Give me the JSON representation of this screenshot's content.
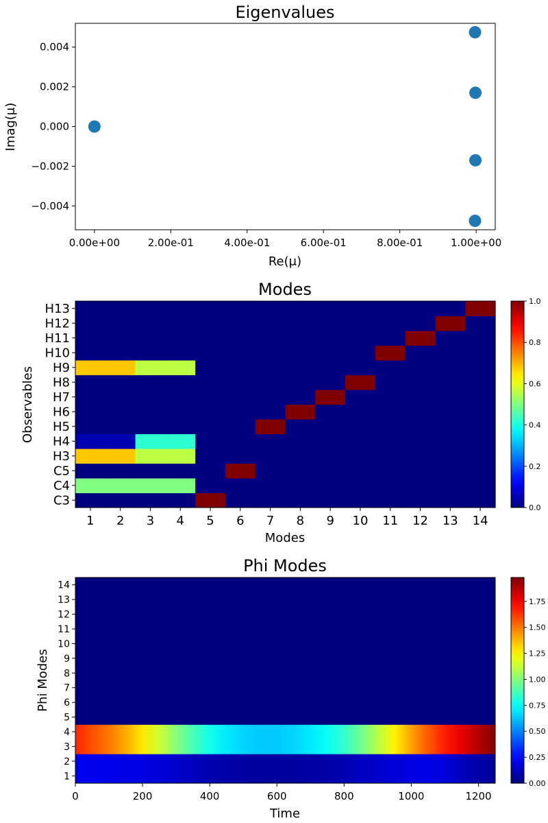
{
  "chart_data": [
    {
      "type": "scatter",
      "title": "Eigenvalues",
      "xlabel": "Re(μ)",
      "ylabel": "Imag(μ)",
      "xlim": [
        -0.05,
        1.05
      ],
      "ylim": [
        -0.0052,
        0.0052
      ],
      "xticks": [
        0,
        0.2,
        0.4,
        0.6,
        0.8,
        1.0
      ],
      "xtick_labels": [
        "0.00e+00",
        "2.00e-01",
        "4.00e-01",
        "6.00e-01",
        "8.00e-01",
        "1.00e+00"
      ],
      "yticks": [
        -0.004,
        -0.002,
        0.0,
        0.002,
        0.004
      ],
      "ytick_labels": [
        "−0.004",
        "−0.002",
        "0.000",
        "0.002",
        "0.004"
      ],
      "color": "#1f77b4",
      "points": [
        {
          "x": 0.0,
          "y": 0.0
        },
        {
          "x": 0.997,
          "y": 0.00475
        },
        {
          "x": 0.998,
          "y": 0.0017
        },
        {
          "x": 0.998,
          "y": -0.0017
        },
        {
          "x": 0.997,
          "y": -0.00475
        }
      ]
    },
    {
      "type": "heatmap",
      "title": "Modes",
      "xlabel": "Modes",
      "ylabel": "Observables",
      "colormap": "jet",
      "vmin": 0.0,
      "vmax": 1.0,
      "x_tick_labels": [
        "1",
        "2",
        "3",
        "4",
        "5",
        "6",
        "7",
        "8",
        "9",
        "10",
        "11",
        "12",
        "13",
        "14"
      ],
      "y_tick_labels": [
        "C3",
        "C4",
        "C5",
        "H3",
        "H4",
        "H5",
        "H6",
        "H7",
        "H8",
        "H9",
        "H10",
        "H11",
        "H12",
        "H13"
      ],
      "colorbar_ticks": [
        0.0,
        0.2,
        0.4,
        0.6,
        0.8,
        1.0
      ],
      "colorbar_tick_labels": [
        "0.0",
        "0.2",
        "0.4",
        "0.6",
        "0.8",
        "1.0"
      ],
      "rows": [
        [
          0,
          0,
          0,
          0,
          1,
          0,
          0,
          0,
          0,
          0,
          0,
          0,
          0,
          0
        ],
        [
          0.5,
          0.5,
          0.5,
          0.5,
          0,
          0,
          0,
          0,
          0,
          0,
          0,
          0,
          0,
          0
        ],
        [
          0,
          0,
          0,
          0,
          0,
          1,
          0,
          0,
          0,
          0,
          0,
          0,
          0,
          0
        ],
        [
          0.68,
          0.68,
          0.56,
          0.56,
          0,
          0,
          0,
          0,
          0,
          0,
          0,
          0,
          0,
          0
        ],
        [
          0.05,
          0.05,
          0.42,
          0.42,
          0,
          0,
          0,
          0,
          0,
          0,
          0,
          0,
          0,
          0
        ],
        [
          0,
          0,
          0,
          0,
          0,
          0,
          1,
          0,
          0,
          0,
          0,
          0,
          0,
          0
        ],
        [
          0,
          0,
          0,
          0,
          0,
          0,
          0,
          1,
          0,
          0,
          0,
          0,
          0,
          0
        ],
        [
          0,
          0,
          0,
          0,
          0,
          0,
          0,
          0,
          1,
          0,
          0,
          0,
          0,
          0
        ],
        [
          0,
          0,
          0,
          0,
          0,
          0,
          0,
          0,
          0,
          1,
          0,
          0,
          0,
          0
        ],
        [
          0.68,
          0.68,
          0.56,
          0.56,
          0,
          0,
          0,
          0,
          0,
          0,
          0,
          0,
          0,
          0
        ],
        [
          0,
          0,
          0,
          0,
          0,
          0,
          0,
          0,
          0,
          0,
          1,
          0,
          0,
          0
        ],
        [
          0,
          0,
          0,
          0,
          0,
          0,
          0,
          0,
          0,
          0,
          0,
          1,
          0,
          0
        ],
        [
          0,
          0,
          0,
          0,
          0,
          0,
          0,
          0,
          0,
          0,
          0,
          0,
          1,
          0
        ],
        [
          0,
          0,
          0,
          0,
          0,
          0,
          0,
          0,
          0,
          0,
          0,
          0,
          0,
          1
        ]
      ]
    },
    {
      "type": "heatmap",
      "title": "Phi Modes",
      "xlabel": "Time",
      "ylabel": "Phi Modes",
      "colormap": "jet",
      "vmin": 0.0,
      "vmax": 1.98,
      "xlim": [
        0,
        1250
      ],
      "xticks": [
        0,
        200,
        400,
        600,
        800,
        1000,
        1200
      ],
      "xtick_labels": [
        "0",
        "200",
        "400",
        "600",
        "800",
        "1000",
        "1200"
      ],
      "y_tick_labels": [
        "1",
        "2",
        "3",
        "4",
        "5",
        "6",
        "7",
        "8",
        "9",
        "10",
        "11",
        "12",
        "13",
        "14"
      ],
      "colorbar_ticks": [
        0.0,
        0.25,
        0.5,
        0.75,
        1.0,
        1.25,
        1.5,
        1.75
      ],
      "colorbar_tick_labels": [
        "0.00",
        "0.25",
        "0.50",
        "0.75",
        "1.00",
        "1.25",
        "1.50",
        "1.75"
      ],
      "time_samples": [
        0,
        50,
        100,
        150,
        200,
        250,
        300,
        350,
        400,
        450,
        500,
        550,
        600,
        650,
        700,
        750,
        800,
        850,
        900,
        950,
        1000,
        1050,
        1100,
        1150,
        1200,
        1250
      ],
      "bands": [
        {
          "modes": [
            1,
            2
          ],
          "values": [
            0.22,
            0.22,
            0.21,
            0.2,
            0.19,
            0.17,
            0.15,
            0.12,
            0.1,
            0.08,
            0.07,
            0.06,
            0.06,
            0.06,
            0.07,
            0.08,
            0.1,
            0.13,
            0.15,
            0.17,
            0.19,
            0.2,
            0.18,
            0.12,
            0.08,
            0.05
          ]
        },
        {
          "modes": [
            3,
            4
          ],
          "values": [
            1.66,
            1.58,
            1.5,
            1.4,
            1.28,
            1.14,
            1.0,
            0.88,
            0.78,
            0.7,
            0.66,
            0.64,
            0.64,
            0.66,
            0.7,
            0.76,
            0.84,
            0.96,
            1.1,
            1.26,
            1.42,
            1.56,
            1.68,
            1.78,
            1.88,
            1.97
          ]
        },
        {
          "modes": [
            5,
            6,
            7,
            8,
            9,
            10,
            11,
            12,
            13,
            14
          ],
          "values": [
            0,
            0,
            0,
            0,
            0,
            0,
            0,
            0,
            0,
            0,
            0,
            0,
            0,
            0,
            0,
            0,
            0,
            0,
            0,
            0,
            0,
            0,
            0,
            0,
            0,
            0
          ]
        }
      ]
    }
  ]
}
